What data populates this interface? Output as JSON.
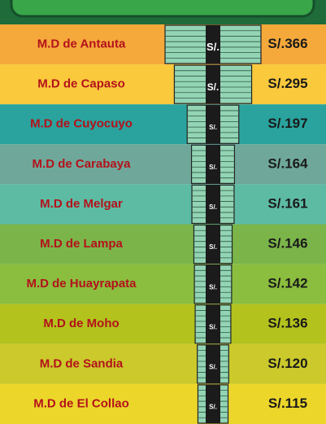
{
  "chart_data": {
    "type": "money-stack",
    "categories": [
      "M.D de Antauta",
      "M.D de Capaso",
      "M.D de Cuyocuyo",
      "M.D de Carabaya",
      "M.D de Melgar",
      "M.D de Lampa",
      "M.D de Huayrapata",
      "M.D de Moho",
      "M.D de Sandia",
      "M.D de El Collao"
    ],
    "values": [
      366,
      295,
      197,
      164,
      161,
      146,
      142,
      136,
      120,
      115
    ],
    "value_labels": [
      "S/.366",
      "S/.295",
      "S/.197",
      "S/.164",
      "S/.161",
      "S/.146",
      "S/.142",
      "S/.136",
      "S/.120",
      "S/.115"
    ],
    "currency_symbol": "S/.",
    "row_colors": [
      "#f6a93b",
      "#fbc93c",
      "#2aa39e",
      "#6fa89a",
      "#5dbba4",
      "#7bb54a",
      "#8bbd3e",
      "#b3c21c",
      "#cbc92b",
      "#ecd62a"
    ],
    "stack_color": "#93d4b4"
  }
}
